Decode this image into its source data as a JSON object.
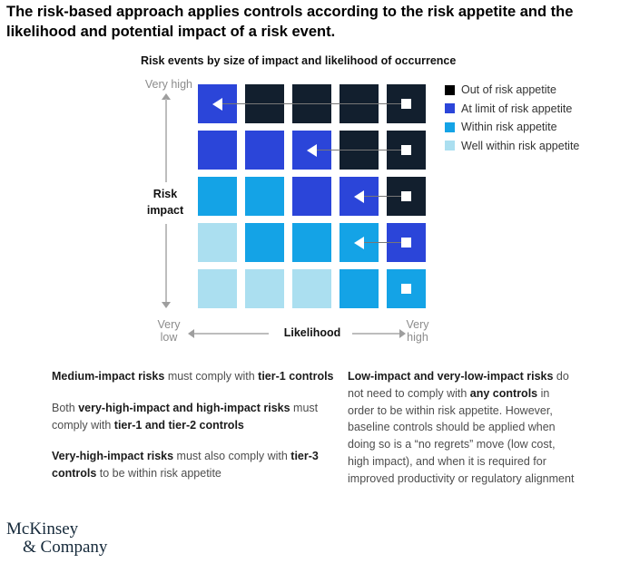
{
  "title": "The risk-based approach applies controls according to the risk appetite and the likelihood and potential impact of a risk event.",
  "chart": {
    "subtitle": "Risk events by size of impact and likelihood of occurrence",
    "y_axis": {
      "label_line1": "Risk",
      "label_line2": "impact",
      "top": "Very high"
    },
    "x_axis": {
      "label": "Likelihood",
      "right_line1": "Very",
      "right_line2": "high"
    },
    "corner": {
      "line1": "Very",
      "line2": "low"
    }
  },
  "legend": {
    "items": [
      {
        "label": "Out of risk appetite",
        "color": "#000000"
      },
      {
        "label": "At limit of risk appetite",
        "color": "#2b45d9"
      },
      {
        "label": "Within risk appetite",
        "color": "#14a3e6"
      },
      {
        "label": "Well within risk appetite",
        "color": "#abdff0"
      }
    ]
  },
  "chart_data": {
    "type": "heatmap",
    "title": "Risk events by size of impact and likelihood of occurrence",
    "xlabel": "Likelihood",
    "ylabel": "Risk impact",
    "x_range": [
      "Very low",
      "Very high"
    ],
    "y_range": [
      "Very low",
      "Very high"
    ],
    "categories": {
      "out": {
        "label": "Out of risk appetite",
        "color": "#121f2e"
      },
      "at_limit": {
        "label": "At limit of risk appetite",
        "color": "#2b45d9"
      },
      "within": {
        "label": "Within risk appetite",
        "color": "#14a3e6"
      },
      "well_within": {
        "label": "Well within risk appetite",
        "color": "#abdff0"
      }
    },
    "grid_rows_top_to_bottom": [
      [
        "at_limit",
        "out",
        "out",
        "out",
        "out"
      ],
      [
        "at_limit",
        "at_limit",
        "at_limit",
        "out",
        "out"
      ],
      [
        "within",
        "within",
        "at_limit",
        "at_limit",
        "out"
      ],
      [
        "well_within",
        "within",
        "within",
        "within",
        "at_limit"
      ],
      [
        "well_within",
        "well_within",
        "well_within",
        "within",
        "within"
      ]
    ],
    "arrows": [
      {
        "row": 1,
        "from_col": 5,
        "to_col": 1
      },
      {
        "row": 2,
        "from_col": 5,
        "to_col": 3
      },
      {
        "row": 3,
        "from_col": 5,
        "to_col": 4
      },
      {
        "row": 4,
        "from_col": 5,
        "to_col": 4
      }
    ],
    "markers": [
      {
        "row": 5,
        "col": 5
      }
    ]
  },
  "notes": {
    "left": [
      [
        {
          "t": "Medium-impact risks",
          "b": true
        },
        {
          "t": " must comply with ",
          "b": false
        },
        {
          "t": "tier-1 controls",
          "b": true
        }
      ],
      [
        {
          "t": "Both ",
          "b": false
        },
        {
          "t": "very-high-impact and high-impact risks",
          "b": true
        },
        {
          "t": " must comply with ",
          "b": false
        },
        {
          "t": "tier-1 and tier-2 controls",
          "b": true
        }
      ],
      [
        {
          "t": "Very-high-impact risks",
          "b": true
        },
        {
          "t": " must also comply with ",
          "b": false
        },
        {
          "t": "tier-3 controls",
          "b": true
        },
        {
          "t": " to be within risk appetite",
          "b": false
        }
      ]
    ],
    "right": [
      [
        {
          "t": "Low-impact and very-low-impact risks",
          "b": true
        },
        {
          "t": " do not need to comply with ",
          "b": false
        },
        {
          "t": "any controls",
          "b": true
        },
        {
          "t": " in order to be within risk appetite. However, baseline controls should be applied when doing so is a “no regrets” move (low cost, high impact), and when it is required for improved productivity or regulatory alignment",
          "b": false
        }
      ]
    ]
  },
  "logo": {
    "line1": "McKinsey",
    "line2": "& Company"
  }
}
